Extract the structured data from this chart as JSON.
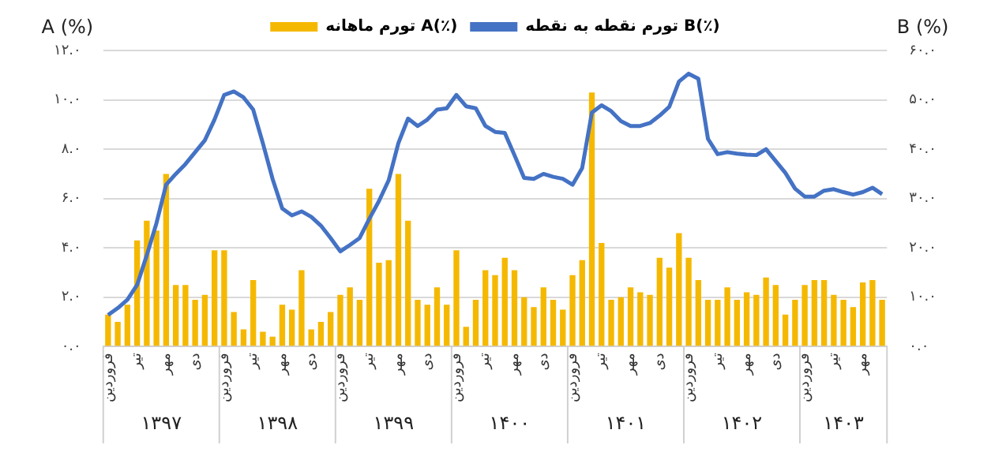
{
  "chart_data": {
    "type": "bar",
    "ylabel": "A (%)",
    "y2label": "B (%)",
    "categories": [
      "فروردین",
      null,
      null,
      "تیر",
      null,
      null,
      "مهر",
      null,
      null,
      "دی",
      null,
      null,
      "فروردین",
      null,
      null,
      "تیر",
      null,
      null,
      "مهر",
      null,
      null,
      "دی",
      null,
      null,
      "فروردین",
      null,
      null,
      "تیر",
      null,
      null,
      "مهر",
      null,
      null,
      "دی",
      null,
      null,
      "فروردین",
      null,
      null,
      "تیر",
      null,
      null,
      "مهر",
      null,
      null,
      "دی",
      null,
      null,
      "فروردین",
      null,
      null,
      "تیر",
      null,
      null,
      "مهر",
      null,
      null,
      "دی",
      null,
      null,
      "فروردین",
      null,
      null,
      "تیر",
      null,
      null,
      "مهر",
      null,
      null,
      "دی",
      null,
      null,
      "فروردین",
      null,
      null,
      "تیر",
      null,
      null,
      "مهر",
      null,
      null
    ],
    "series": [
      {
        "name": "تورم ماهانه A(٪)",
        "color": "#f5b800",
        "values": [
          1.3,
          1.0,
          1.7,
          4.3,
          5.1,
          4.7,
          7.0,
          2.5,
          2.5,
          1.9,
          2.1,
          3.9,
          3.9,
          1.4,
          0.7,
          2.7,
          0.6,
          0.4,
          1.7,
          1.5,
          3.1,
          0.7,
          1.0,
          1.4,
          2.1,
          2.4,
          1.9,
          6.4,
          3.4,
          3.5,
          7.0,
          5.1,
          1.9,
          1.7,
          2.4,
          1.7,
          3.9,
          0.8,
          1.9,
          3.1,
          2.9,
          3.6,
          3.1,
          2.0,
          1.6,
          2.4,
          1.9,
          1.5,
          2.9,
          3.5,
          10.3,
          4.2,
          1.9,
          2.0,
          2.4,
          2.2,
          2.1,
          3.6,
          3.2,
          4.6,
          3.6,
          2.7,
          1.9,
          1.9,
          2.4,
          1.9,
          2.2,
          2.1,
          2.8,
          2.5,
          1.3,
          1.9,
          2.5,
          2.7,
          2.7,
          2.1,
          1.9,
          1.6,
          2.6,
          2.7,
          1.9
        ]
      },
      {
        "name": "تورم نقطه به نقطه B(٪)",
        "type": "line",
        "axis": "y2",
        "color": "#4472c4",
        "values": [
          6.4,
          7.8,
          9.5,
          12.5,
          18.5,
          25.0,
          32.8,
          35.0,
          37.0,
          39.4,
          41.8,
          46.0,
          51.0,
          51.7,
          50.5,
          48.0,
          41.2,
          34.0,
          28.0,
          26.6,
          27.4,
          26.3,
          24.5,
          22.0,
          19.3,
          20.6,
          22.0,
          25.9,
          29.5,
          33.7,
          41.2,
          46.2,
          44.7,
          46.0,
          48.0,
          48.3,
          51.0,
          48.7,
          48.3,
          44.7,
          43.5,
          43.3,
          38.8,
          34.2,
          34.0,
          35.0,
          34.4,
          34.0,
          32.8,
          36.2,
          47.4,
          48.9,
          47.7,
          45.7,
          44.7,
          44.7,
          45.3,
          46.8,
          48.6,
          53.7,
          55.3,
          54.3,
          42.1,
          39.0,
          39.4,
          39.1,
          38.9,
          38.8,
          40.0,
          37.6,
          35.2,
          32.0,
          30.4,
          30.4,
          31.6,
          31.9,
          31.3,
          30.8,
          31.3,
          32.2,
          30.9
        ]
      }
    ],
    "ylim": [
      0,
      12
    ],
    "yticks": [
      {
        "value": 0,
        "label": "۰.۰"
      },
      {
        "value": 2,
        "label": "۲.۰"
      },
      {
        "value": 4,
        "label": "۴.۰"
      },
      {
        "value": 6,
        "label": "۶.۰"
      },
      {
        "value": 8,
        "label": "۸.۰"
      },
      {
        "value": 10,
        "label": "۱۰.۰"
      },
      {
        "value": 12,
        "label": "۱۲.۰"
      }
    ],
    "y2lim": [
      0,
      60
    ],
    "y2ticks": [
      {
        "value": 0,
        "label": "۰.۰"
      },
      {
        "value": 10,
        "label": "۱۰.۰"
      },
      {
        "value": 20,
        "label": "۲۰.۰"
      },
      {
        "value": 30,
        "label": "۳۰.۰"
      },
      {
        "value": 40,
        "label": "۴۰.۰"
      },
      {
        "value": 50,
        "label": "۵۰.۰"
      },
      {
        "value": 60,
        "label": "۶۰.۰"
      }
    ],
    "grid": "y",
    "legend": "top",
    "marker": "none",
    "line_style": "solid",
    "annotations": [
      "۱۳۹۷",
      "۱۳۹۸",
      "۱۳۹۹",
      "۱۴۰۰",
      "۱۴۰۱",
      "۱۴۰۲",
      "۱۴۰۳"
    ]
  }
}
